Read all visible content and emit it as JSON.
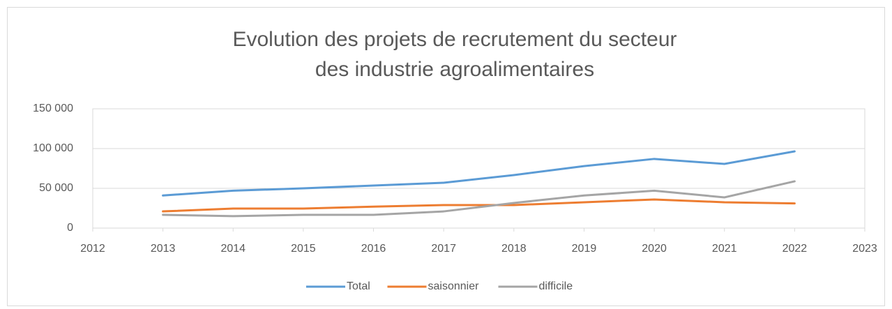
{
  "chart_data": {
    "type": "line",
    "title": [
      "Evolution des projets de recrutement du secteur",
      "des industrie agroalimentaires"
    ],
    "x": [
      2013,
      2014,
      2015,
      2016,
      2017,
      2018,
      2019,
      2020,
      2021,
      2022
    ],
    "series": [
      {
        "name": "Total",
        "color": "#5b9bd5",
        "values": [
          41000,
          47000,
          50000,
          53500,
          57000,
          66700,
          78000,
          87000,
          80700,
          96500
        ]
      },
      {
        "name": "saisonnier",
        "color": "#ed7d31",
        "values": [
          21000,
          24600,
          24600,
          27000,
          29000,
          29000,
          32500,
          36000,
          32500,
          31000
        ]
      },
      {
        "name": "difficile",
        "color": "#a5a5a5",
        "values": [
          16700,
          15000,
          16700,
          16700,
          21000,
          31600,
          41000,
          47000,
          38600,
          58800
        ]
      }
    ],
    "xlim": [
      2012,
      2023
    ],
    "xticks": [
      2012,
      2013,
      2014,
      2015,
      2016,
      2017,
      2018,
      2019,
      2020,
      2021,
      2022,
      2023
    ],
    "ylim": [
      0,
      150000
    ],
    "yticks": [
      0,
      {
        "value": 50000,
        "label": "50 000"
      },
      {
        "value": 100000,
        "label": "100 000"
      },
      {
        "value": 150000,
        "label": "150 000"
      }
    ],
    "grid": true,
    "legend": "bottom"
  }
}
